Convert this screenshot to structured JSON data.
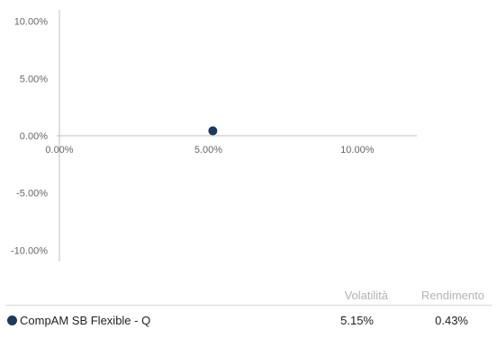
{
  "colors": {
    "series": "#1c3a5e",
    "axis": "#bfbfbf",
    "tick_text": "#666666"
  },
  "chart_data": {
    "type": "scatter",
    "x_ticks": [
      "0.00%",
      "5.00%",
      "10.00%"
    ],
    "y_ticks": [
      "10.00%",
      "5.00%",
      "0.00%",
      "-5.00%",
      "-10.00%"
    ],
    "xlim": [
      0,
      12
    ],
    "ylim": [
      -11,
      11
    ],
    "x_tick_values": [
      0,
      5,
      10
    ],
    "y_tick_values": [
      10,
      5,
      0,
      -5,
      -10
    ],
    "grid": false,
    "series": [
      {
        "name": "CompAM SB Flexible - Q",
        "points": [
          {
            "x": 5.15,
            "y": 0.43
          }
        ]
      }
    ]
  },
  "legend": {
    "headers": {
      "volatility": "Volatilità",
      "return": "Rendimento"
    },
    "rows": [
      {
        "name": "CompAM SB Flexible - Q",
        "volatility": "5.15%",
        "return": "0.43%"
      }
    ]
  }
}
